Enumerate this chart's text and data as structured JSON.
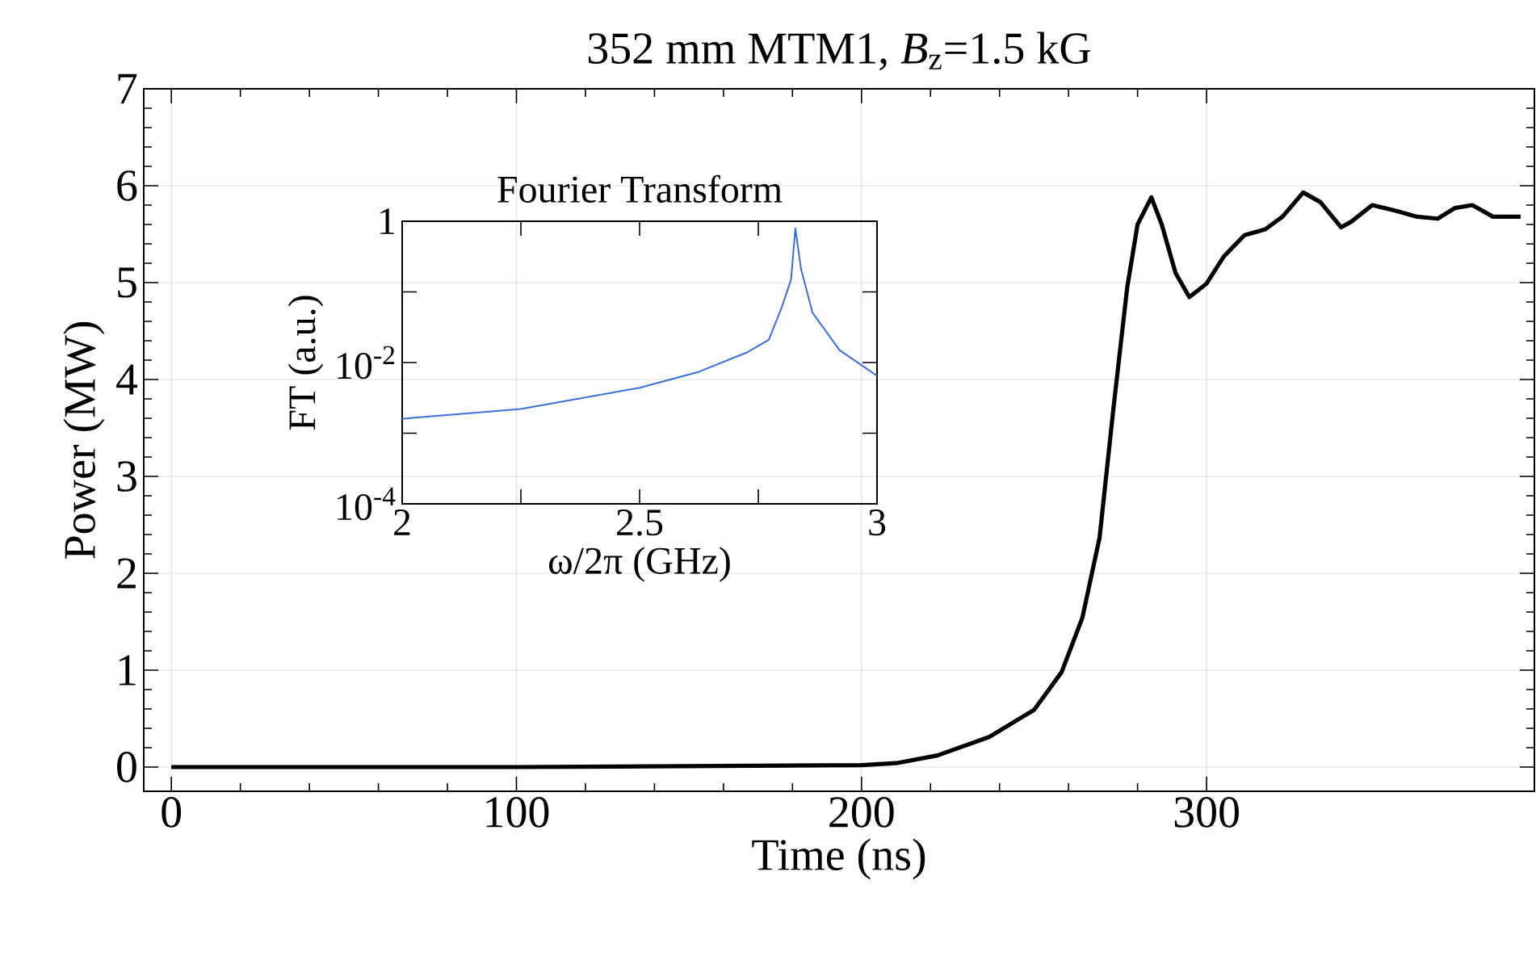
{
  "chart_data": [
    {
      "type": "line",
      "title": "352 mm MTM1, *B*$_{z}$=1.5 kG",
      "xlabel": "Time (ns)",
      "ylabel": "Power (MW)",
      "color": "#000000",
      "grid": true,
      "x": [
        0,
        100,
        200,
        210,
        222,
        237,
        250,
        258,
        264,
        269,
        273,
        277,
        280,
        284,
        287,
        291,
        295,
        300,
        305,
        311,
        317,
        322,
        328,
        333,
        339,
        342,
        348,
        355,
        361,
        367,
        372,
        377,
        383,
        391
      ],
      "values": [
        0,
        0,
        0.02,
        0.04,
        0.12,
        0.31,
        0.59,
        0.98,
        1.54,
        2.37,
        3.7,
        4.95,
        5.6,
        5.88,
        5.6,
        5.1,
        4.85,
        4.99,
        5.27,
        5.49,
        5.55,
        5.68,
        5.93,
        5.83,
        5.57,
        5.63,
        5.8,
        5.74,
        5.68,
        5.66,
        5.77,
        5.8,
        5.68,
        5.68
      ],
      "xlim": [
        -8,
        395
      ],
      "ylim": [
        -0.25,
        7
      ],
      "xticks": [
        0,
        100,
        200,
        300
      ],
      "yticks": [
        0,
        1,
        2,
        3,
        4,
        5,
        6,
        7
      ]
    },
    {
      "type": "line",
      "title": "Fourier Transform",
      "xlabel": "ω/2π (GHz)",
      "ylabel": "FT (a.u.)",
      "color": "#3a6fd8",
      "log": "y",
      "x": [
        2.0,
        2.25,
        2.5,
        2.625,
        2.727,
        2.772,
        2.8,
        2.819,
        2.828,
        2.84,
        2.864,
        2.921,
        3.0
      ],
      "values": [
        0.0016,
        0.0022,
        0.0044,
        0.0074,
        0.014,
        0.021,
        0.062,
        0.15,
        0.79,
        0.21,
        0.051,
        0.015,
        0.0065
      ],
      "xlim": [
        2,
        3
      ],
      "ylim": [
        0.0001,
        1
      ],
      "xticks": [
        2,
        {
          "value": 2.25,
          "label": null
        },
        2.5,
        {
          "value": 2.75,
          "label": null
        },
        3
      ],
      "yticks": [
        {
          "value": 0.0001,
          "label": "10$^{-4}$"
        },
        {
          "value": 0.001,
          "label": null
        },
        {
          "value": 0.01,
          "label": "10$^{-2}$"
        },
        {
          "value": 0.1,
          "label": null
        },
        1
      ]
    }
  ]
}
